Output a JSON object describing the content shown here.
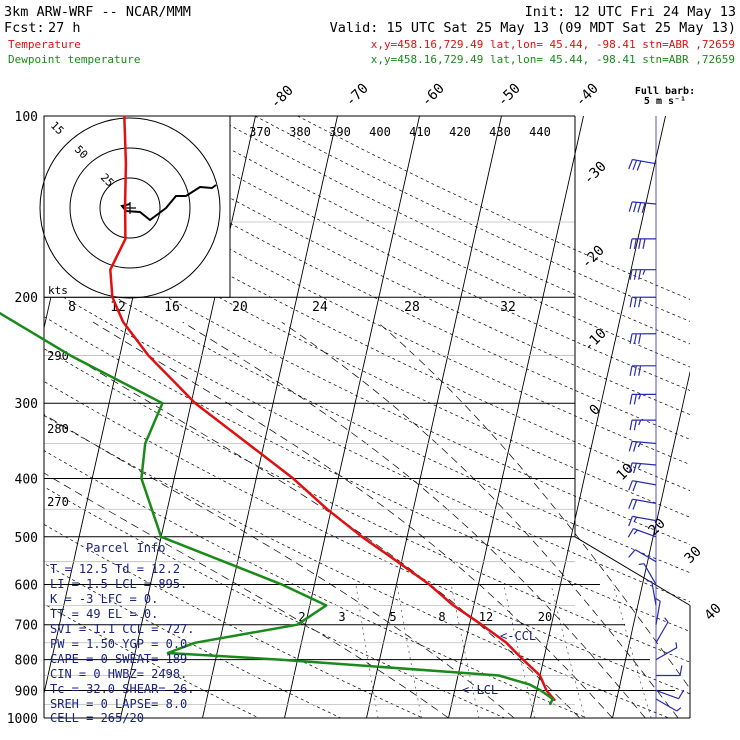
{
  "header": {
    "model": "3km ARW-WRF -- NCAR/MMM",
    "init": "Init: 12 UTC Fri 24 May 13",
    "fcst_label": "Fcst:",
    "fcst_value": "27 h",
    "valid": "Valid: 15 UTC Sat 25 May 13 (09 MDT Sat 25 May 13)",
    "temp_label": "Temperature",
    "temp_info": "x,y=458.16,729.49   lat,lon= 45.44, -98.41   stn=ABR ,72659",
    "dew_label": "Dewpoint temperature",
    "dew_info": "x,y=458.16,729.49   lat,lon= 45.44, -98.41   stn=ABR ,72659",
    "barb_label1": "Full barb:",
    "barb_label2": "5 m s⁻¹"
  },
  "colors": {
    "temperature": "#e01010",
    "dewpoint": "#1a8a1a",
    "parcel_text": "#1a237e",
    "wind": "#2a2ab0"
  },
  "hodograph": {
    "kts_label": "kts",
    "ring_labels": [
      "15",
      "50",
      "25"
    ],
    "speed_labels": [
      "8",
      "12",
      "16",
      "20",
      "24",
      "28",
      "32"
    ]
  },
  "levels": [
    "100",
    "200",
    "300",
    "400",
    "500",
    "600",
    "700",
    "800",
    "900",
    "1000"
  ],
  "isotherm_labels": [
    "-80",
    "-70",
    "-60",
    "-50",
    "-40",
    "-30",
    "-20",
    "-10",
    "0",
    "10",
    "20",
    "30",
    "40"
  ],
  "theta_labels": [
    "370",
    "380",
    "390",
    "400",
    "410",
    "420",
    "430",
    "440"
  ],
  "theta_left_labels": [
    "290",
    "280",
    "270"
  ],
  "mixing_labels": [
    "2",
    "3",
    "5",
    "8",
    "12",
    "20"
  ],
  "annotations": {
    "ccl": "<-CCL",
    "lcl": "<-LCL"
  },
  "parcel": {
    "title": "Parcel Info",
    "rows": [
      "T  =    12.5  Td =  12.2",
      "LI  =    1.5  LCL =  895.",
      "K  =     -3  LFC =    0.",
      "TT  =    49  EL  =    0.",
      "SVI =    1.1  CCL =  727.",
      "PW  =   1.50  YGP =   0.0",
      "CAPE =     0  SWEAT=  189",
      "CIN  =     0  HWBZ= 2498.",
      "Tc  =   32.0  SHEAR=   26.",
      "SREH =    0  LAPSE=   8.0",
      "CELL = 265/20"
    ]
  },
  "chart_data": {
    "type": "line",
    "xlabel": "",
    "ylabel": "",
    "x_unit": "temperature (C), skewed",
    "y_unit": "pressure (hPa), log scale",
    "ylim": [
      1000,
      100
    ],
    "series": [
      {
        "name": "Temperature",
        "points": [
          {
            "p": 935,
            "t": 12.5
          },
          {
            "p": 900,
            "t": 11.2
          },
          {
            "p": 850,
            "t": 10.0
          },
          {
            "p": 800,
            "t": 7.5
          },
          {
            "p": 750,
            "t": 5.0
          },
          {
            "p": 700,
            "t": 1.5
          },
          {
            "p": 650,
            "t": -2.5
          },
          {
            "p": 600,
            "t": -6.0
          },
          {
            "p": 550,
            "t": -10.5
          },
          {
            "p": 500,
            "t": -15.5
          },
          {
            "p": 450,
            "t": -20.5
          },
          {
            "p": 400,
            "t": -25.5
          },
          {
            "p": 350,
            "t": -32.0
          },
          {
            "p": 300,
            "t": -39.5
          },
          {
            "p": 250,
            "t": -46.5
          },
          {
            "p": 220,
            "t": -50.5
          },
          {
            "p": 200,
            "t": -52.5
          },
          {
            "p": 180,
            "t": -53.5
          },
          {
            "p": 160,
            "t": -52.5
          },
          {
            "p": 140,
            "t": -53.5
          },
          {
            "p": 120,
            "t": -54.5
          },
          {
            "p": 100,
            "t": -56.0
          }
        ]
      },
      {
        "name": "Dewpoint temperature",
        "points": [
          {
            "p": 950,
            "t": 12.0
          },
          {
            "p": 930,
            "t": 12.2
          },
          {
            "p": 900,
            "t": 10.5
          },
          {
            "p": 880,
            "t": 9.0
          },
          {
            "p": 850,
            "t": 5.0
          },
          {
            "p": 800,
            "t": -22.0
          },
          {
            "p": 780,
            "t": -36.0
          },
          {
            "p": 750,
            "t": -33.0
          },
          {
            "p": 700,
            "t": -21.0
          },
          {
            "p": 650,
            "t": -18.0
          },
          {
            "p": 600,
            "t": -24.0
          },
          {
            "p": 500,
            "t": -40.0
          },
          {
            "p": 400,
            "t": -44.0
          },
          {
            "p": 350,
            "t": -44.5
          },
          {
            "p": 300,
            "t": -43.5
          },
          {
            "p": 250,
            "t": -56.0
          },
          {
            "p": 200,
            "t": -69.5
          },
          {
            "p": 150,
            "t": -79.5
          },
          {
            "p": 120,
            "t": -83.5
          },
          {
            "p": 100,
            "t": -85.0
          }
        ]
      }
    ],
    "wind_profile": [
      {
        "p": 120,
        "dir": 280,
        "spd": 30
      },
      {
        "p": 140,
        "dir": 275,
        "spd": 40
      },
      {
        "p": 160,
        "dir": 270,
        "spd": 40
      },
      {
        "p": 180,
        "dir": 270,
        "spd": 35
      },
      {
        "p": 200,
        "dir": 270,
        "spd": 30
      },
      {
        "p": 230,
        "dir": 270,
        "spd": 30
      },
      {
        "p": 260,
        "dir": 270,
        "spd": 30
      },
      {
        "p": 290,
        "dir": 270,
        "spd": 25
      },
      {
        "p": 320,
        "dir": 270,
        "spd": 25
      },
      {
        "p": 350,
        "dir": 275,
        "spd": 25
      },
      {
        "p": 380,
        "dir": 275,
        "spd": 25
      },
      {
        "p": 410,
        "dir": 280,
        "spd": 20
      },
      {
        "p": 440,
        "dir": 280,
        "spd": 20
      },
      {
        "p": 470,
        "dir": 280,
        "spd": 15
      },
      {
        "p": 500,
        "dir": 290,
        "spd": 15
      },
      {
        "p": 550,
        "dir": 300,
        "spd": 10
      },
      {
        "p": 600,
        "dir": 330,
        "spd": 5
      },
      {
        "p": 650,
        "dir": 350,
        "spd": 5
      },
      {
        "p": 700,
        "dir": 10,
        "spd": 5
      },
      {
        "p": 750,
        "dir": 30,
        "spd": 5
      },
      {
        "p": 800,
        "dir": 60,
        "spd": 5
      },
      {
        "p": 850,
        "dir": 90,
        "spd": 10
      },
      {
        "p": 900,
        "dir": 110,
        "spd": 10
      },
      {
        "p": 930,
        "dir": 120,
        "spd": 5
      }
    ]
  }
}
